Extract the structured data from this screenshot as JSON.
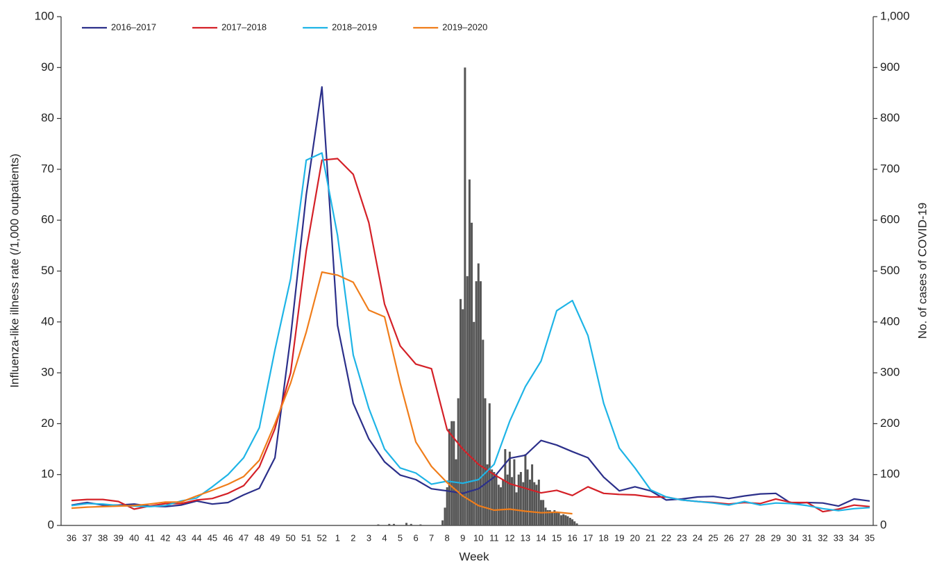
{
  "chart_data": {
    "type": "line",
    "xlabel": "Week",
    "ylabel": "Influenza-like illness rate (/1,000 outpatients)",
    "y2label": "No. of cases of COVID-19",
    "categories": [
      "36",
      "37",
      "38",
      "39",
      "40",
      "41",
      "42",
      "43",
      "44",
      "45",
      "46",
      "47",
      "48",
      "49",
      "50",
      "51",
      "52",
      "1",
      "2",
      "3",
      "4",
      "5",
      "6",
      "7",
      "8",
      "9",
      "10",
      "11",
      "12",
      "13",
      "14",
      "15",
      "16",
      "17",
      "18",
      "19",
      "20",
      "21",
      "22",
      "23",
      "24",
      "25",
      "26",
      "27",
      "28",
      "29",
      "30",
      "31",
      "32",
      "33",
      "34",
      "35"
    ],
    "ylim": [
      0,
      100
    ],
    "yticks": [
      0,
      10,
      20,
      30,
      40,
      50,
      60,
      70,
      80,
      90,
      100
    ],
    "y2lim": [
      0,
      1000
    ],
    "y2ticks": [
      0,
      100,
      200,
      300,
      400,
      500,
      600,
      700,
      800,
      900,
      {
        "value": 1000,
        "label": "1,000"
      }
    ],
    "legend": "top-left",
    "series": [
      {
        "type": "bar",
        "axis": "y2",
        "color": "#555555",
        "x": [
          19.6,
          20.3,
          20.6,
          21.4,
          21.7,
          22.3,
          23.71,
          23.86,
          24,
          24.14,
          24.29,
          24.43,
          24.57,
          24.71,
          24.86,
          25,
          25.14,
          25.29,
          25.43,
          25.57,
          25.71,
          25.86,
          26,
          26.14,
          26.29,
          26.43,
          26.57,
          26.71,
          26.86,
          27,
          27.14,
          27.29,
          27.43,
          27.57,
          27.71,
          27.86,
          28,
          28.14,
          28.29,
          28.43,
          28.57,
          28.71,
          28.86,
          29,
          29.14,
          29.29,
          29.43,
          29.57,
          29.71,
          29.86,
          30,
          30.14,
          30.29,
          30.43,
          30.57,
          30.71,
          30.86,
          31,
          31.14,
          31.29,
          31.43,
          31.57,
          31.71,
          31.86,
          32,
          32.14,
          32.29
        ],
        "values": [
          2,
          3,
          3,
          5,
          3,
          2,
          10,
          35,
          75,
          190,
          205,
          205,
          130,
          250,
          445,
          425,
          900,
          490,
          680,
          595,
          400,
          480,
          515,
          480,
          365,
          250,
          120,
          240,
          110,
          105,
          100,
          80,
          75,
          90,
          150,
          100,
          145,
          95,
          130,
          65,
          100,
          105,
          85,
          140,
          110,
          90,
          120,
          85,
          80,
          90,
          50,
          50,
          35,
          30,
          30,
          25,
          30,
          25,
          25,
          20,
          22,
          20,
          18,
          15,
          12,
          8,
          4
        ]
      },
      {
        "name": "2016–2017",
        "color": "#2b2f8a",
        "values": [
          4,
          4.5,
          4,
          4,
          4.2,
          3.8,
          3.7,
          4,
          4.8,
          4.2,
          4.5,
          6,
          7.3,
          13.3,
          37,
          65,
          86.2,
          39.3,
          24,
          17,
          12.5,
          9.9,
          9,
          7.2,
          6.8,
          6.3,
          7.2,
          9.5,
          13.2,
          13.8,
          16.7,
          15.8,
          14.5,
          13.3,
          9.5,
          6.8,
          7.6,
          6.8,
          5,
          5.2,
          5.6,
          5.7,
          5.3,
          5.8,
          6.2,
          6.3,
          4.3,
          4.5,
          4.4,
          3.8,
          5.2,
          4.8
        ]
      },
      {
        "name": "2017–2018",
        "color": "#d42027",
        "values": [
          4.9,
          5.1,
          5.1,
          4.7,
          3.2,
          3.8,
          4.3,
          4.3,
          5,
          5.3,
          6.3,
          7.8,
          11.5,
          19,
          30,
          54,
          71.8,
          72.1,
          69,
          59.5,
          43.5,
          35.3,
          31.7,
          30.8,
          18.8,
          15,
          12,
          10,
          8.2,
          7.3,
          6.4,
          6.9,
          5.9,
          7.6,
          6.3,
          6.1,
          6,
          5.6,
          5.6,
          5,
          4.7,
          4.5,
          4.2,
          4.5,
          4.3,
          5.2,
          4.5,
          4.5,
          2.7,
          3.2,
          4,
          3.7
        ]
      },
      {
        "name": "2018–2019",
        "color": "#1eb4e6",
        "values": [
          3.9,
          4.3,
          4.2,
          3.9,
          3.8,
          3.7,
          3.9,
          4.8,
          5.4,
          7.6,
          10,
          13.3,
          19.2,
          34.5,
          48.5,
          71.8,
          73.2,
          57,
          33.5,
          23,
          15,
          11.3,
          10.3,
          8.1,
          8.7,
          8.3,
          9,
          12,
          20.5,
          27.3,
          32.3,
          42.2,
          44.2,
          37.3,
          24,
          15.2,
          11.3,
          7,
          5.6,
          5,
          4.7,
          4.4,
          4,
          4.7,
          4,
          4.4,
          4.3,
          3.9,
          3.3,
          2.9,
          3.3,
          3.5
        ]
      },
      {
        "name": "2019–2020",
        "color": "#f07d1a",
        "values": [
          3.4,
          3.6,
          3.7,
          3.8,
          3.9,
          4.2,
          4.6,
          4.6,
          5.8,
          6.9,
          8.1,
          9.6,
          12.8,
          20,
          28,
          38,
          49.8,
          49.2,
          47.8,
          42.3,
          41,
          28,
          16.4,
          11.6,
          8.4,
          5.8,
          3.9,
          3,
          3.2,
          2.8,
          2.5,
          2.6,
          2.3,
          null,
          null,
          null,
          null,
          null,
          null,
          null,
          null,
          null,
          null,
          null,
          null,
          null,
          null,
          null,
          null,
          null,
          null,
          null
        ]
      }
    ]
  }
}
